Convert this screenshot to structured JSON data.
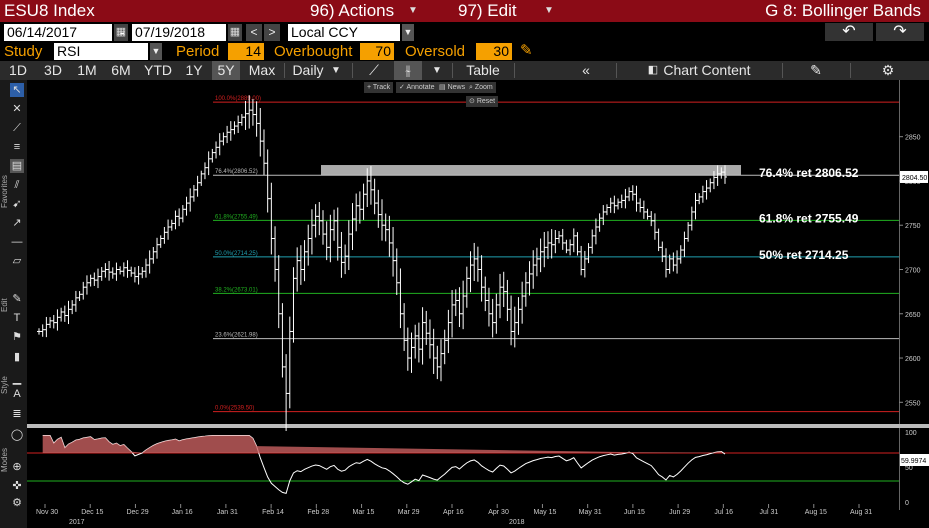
{
  "header": {
    "ticker": "ESU8 Index",
    "actions_label": "96) Actions",
    "edit_label": "97) Edit",
    "graph_title": "G 8: Bollinger Bands"
  },
  "date_range": {
    "start": "06/14/2017",
    "separator": "-",
    "end": "07/19/2018",
    "currency": "Local CCY"
  },
  "study_row": {
    "study_label": "Study",
    "study_value": "RSI",
    "period_label": "Period",
    "period_value": "14",
    "overbought_label": "Overbought",
    "overbought_value": "70",
    "oversold_label": "Oversold",
    "oversold_value": "30"
  },
  "toolbar": {
    "ranges": [
      "1D",
      "3D",
      "1M",
      "6M",
      "YTD",
      "1Y",
      "5Y",
      "Max"
    ],
    "active_range": "5Y",
    "frequency": "Daily",
    "table_label": "Table",
    "chart_content_label": "Chart Content"
  },
  "mini_toolbar": {
    "track": "Track",
    "annotate": "Annotate",
    "news": "News",
    "zoom": "Zoom",
    "reset": "Reset"
  },
  "side_labels": {
    "favorites": "Favorites",
    "edit": "Edit",
    "style": "Style",
    "modes": "Modes"
  },
  "colors": {
    "title_bar": "#8b0b16",
    "amber": "#f5a000",
    "price_bar": "#ffffff",
    "fib_red": "#d22020",
    "fib_green": "#20b020",
    "fib_cyan": "#20a0b0",
    "fib_grey": "#bbbbbb",
    "highlight_box": "#c8c8c8"
  },
  "chart_data": {
    "type": "ohlc-bar",
    "price_axis": {
      "ticks": [
        2850,
        2800,
        2750,
        2700,
        2650,
        2600,
        2550
      ],
      "ylim": [
        2530,
        2905
      ]
    },
    "last_price_label": "2804.50",
    "x_tick_labels": [
      "Nov 30",
      "Dec 15",
      "Dec 29",
      "Jan 16",
      "Jan 31",
      "Feb 14",
      "Feb 28",
      "Mar 15",
      "Mar 29",
      "Apr 16",
      "Apr 30",
      "May 15",
      "May 31",
      "Jun 15",
      "Jun 29",
      "Jul 16",
      "Jul 31",
      "Aug 15",
      "Aug 31"
    ],
    "year_labels": [
      "2017",
      "2018"
    ],
    "fib_levels": [
      {
        "label": "100.0%(2889.00)",
        "value": 2889.0,
        "color": "red"
      },
      {
        "label": "76.4%(2806.52)",
        "value": 2806.52,
        "color": "grey"
      },
      {
        "label": "61.8%(2755.49)",
        "value": 2755.49,
        "color": "green"
      },
      {
        "label": "50.0%(2714.25)",
        "value": 2714.25,
        "color": "cyan"
      },
      {
        "label": "38.2%(2673.01)",
        "value": 2673.01,
        "color": "green"
      },
      {
        "label": "23.6%(2621.98)",
        "value": 2621.98,
        "color": "grey"
      },
      {
        "label": "0.0%(2539.50)",
        "value": 2539.5,
        "color": "red"
      }
    ],
    "annotations": [
      "76.4% ret 2806.52",
      "61.8% ret 2755.49",
      "50% ret 2714.25"
    ],
    "highlight_box": {
      "from": "Mar 1",
      "to": "Jul 18",
      "low": 2806.52,
      "high": 2818
    },
    "closes": [
      2630,
      2632,
      2638,
      2642,
      2640,
      2646,
      2652,
      2648,
      2655,
      2660,
      2668,
      2672,
      2680,
      2685,
      2690,
      2688,
      2692,
      2698,
      2700,
      2697,
      2695,
      2700,
      2698,
      2702,
      2699,
      2696,
      2692,
      2695,
      2698,
      2705,
      2712,
      2720,
      2728,
      2735,
      2742,
      2748,
      2752,
      2760,
      2758,
      2768,
      2775,
      2782,
      2790,
      2798,
      2808,
      2815,
      2825,
      2832,
      2838,
      2845,
      2850,
      2855,
      2858,
      2862,
      2866,
      2872,
      2876,
      2880,
      2875,
      2865,
      2845,
      2820,
      2780,
      2735,
      2700,
      2650,
      2590,
      2560,
      2630,
      2690,
      2710,
      2700,
      2720,
      2735,
      2750,
      2760,
      2755,
      2740,
      2725,
      2745,
      2755,
      2725,
      2708,
      2715,
      2740,
      2757,
      2772,
      2768,
      2785,
      2800,
      2790,
      2775,
      2762,
      2750,
      2745,
      2730,
      2710,
      2685,
      2650,
      2620,
      2600,
      2612,
      2625,
      2610,
      2640,
      2628,
      2615,
      2600,
      2590,
      2605,
      2620,
      2640,
      2660,
      2665,
      2650,
      2670,
      2690,
      2705,
      2712,
      2700,
      2680,
      2665,
      2650,
      2640,
      2660,
      2680,
      2675,
      2655,
      2630,
      2640,
      2655,
      2670,
      2685,
      2695,
      2705,
      2712,
      2720,
      2725,
      2730,
      2728,
      2735,
      2738,
      2730,
      2722,
      2728,
      2738,
      2720,
      2700,
      2712,
      2725,
      2738,
      2748,
      2758,
      2765,
      2770,
      2775,
      2772,
      2776,
      2778,
      2782,
      2788,
      2785,
      2775,
      2770,
      2765,
      2760,
      2755,
      2742,
      2725,
      2715,
      2700,
      2712,
      2705,
      2712,
      2722,
      2735,
      2750,
      2765,
      2778,
      2782,
      2788,
      2792,
      2798,
      2804,
      2808,
      2810,
      2804.5
    ],
    "rsi": {
      "axis_ticks": [
        100,
        50,
        0
      ],
      "overbought": 70,
      "oversold": 30,
      "last_value_label": "59.9974"
    }
  }
}
